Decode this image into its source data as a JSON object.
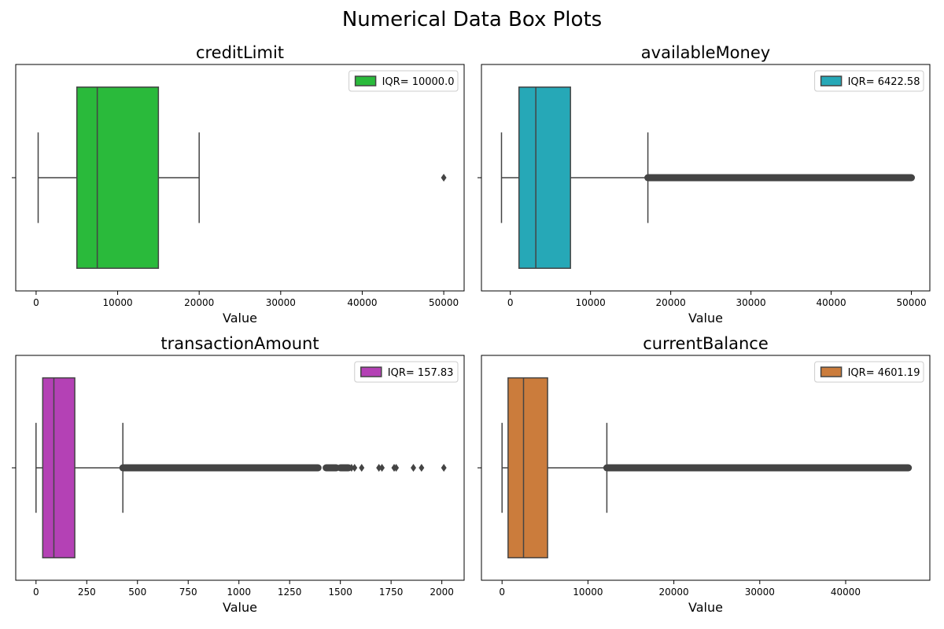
{
  "figure": {
    "title": "Numerical Data Box Plots"
  },
  "chart_data": [
    {
      "type": "box",
      "title": "creditLimit",
      "xlabel": "Value",
      "ylabel": "",
      "xlim": [
        -2500,
        52500
      ],
      "xticks": [
        0,
        10000,
        20000,
        30000,
        40000,
        50000
      ],
      "xtick_labels": [
        "0",
        "10000",
        "20000",
        "30000",
        "40000",
        "50000"
      ],
      "color": "#2aba3b",
      "legend": {
        "label": "IQR= 10000.0",
        "position": "top-right"
      },
      "box": {
        "whisker_low": 250,
        "q1": 5000,
        "median": 7500,
        "q3": 15000,
        "whisker_high": 20000
      },
      "outliers": {
        "segments": [],
        "points": [
          50000
        ]
      }
    },
    {
      "type": "box",
      "title": "availableMoney",
      "xlabel": "Value",
      "ylabel": "",
      "xlim": [
        -3600,
        52300
      ],
      "xticks": [
        0,
        10000,
        20000,
        30000,
        40000,
        50000
      ],
      "xtick_labels": [
        "0",
        "10000",
        "20000",
        "30000",
        "40000",
        "50000"
      ],
      "color": "#26a8b7",
      "legend": {
        "label": "IQR= 6422.58",
        "position": "top-right"
      },
      "box": {
        "whisker_low": -1100,
        "q1": 1080,
        "median": 3180,
        "q3": 7500,
        "whisker_high": 17150
      },
      "outliers": {
        "segments": [
          [
            17150,
            50000
          ]
        ],
        "points": []
      }
    },
    {
      "type": "box",
      "title": "transactionAmount",
      "xlabel": "Value",
      "ylabel": "",
      "xlim": [
        -100,
        2110
      ],
      "xticks": [
        0,
        250,
        500,
        750,
        1000,
        1250,
        1500,
        1750,
        2000
      ],
      "xtick_labels": [
        "0",
        "250",
        "500",
        "750",
        "1000",
        "1250",
        "1500",
        "1750",
        "2000"
      ],
      "color": "#b441b5",
      "legend": {
        "label": "IQR= 157.83",
        "position": "top-right"
      },
      "box": {
        "whisker_low": 0,
        "q1": 33,
        "median": 88,
        "q3": 191,
        "whisker_high": 428
      },
      "outliers": {
        "segments": [
          [
            428,
            1390
          ],
          [
            1430,
            1480
          ],
          [
            1500,
            1540
          ]
        ],
        "points": [
          1555,
          1570,
          1605,
          1690,
          1705,
          1765,
          1775,
          1860,
          1900,
          2010
        ]
      }
    },
    {
      "type": "box",
      "title": "currentBalance",
      "xlabel": "Value",
      "ylabel": "",
      "xlim": [
        -2400,
        49800
      ],
      "xticks": [
        0,
        10000,
        20000,
        30000,
        40000
      ],
      "xtick_labels": [
        "0",
        "10000",
        "20000",
        "30000",
        "40000"
      ],
      "color": "#cb7c3c",
      "legend": {
        "label": "IQR= 4601.19",
        "position": "top-right"
      },
      "box": {
        "whisker_low": 0,
        "q1": 700,
        "median": 2500,
        "q3": 5300,
        "whisker_high": 12200
      },
      "outliers": {
        "segments": [
          [
            12200,
            47300
          ]
        ],
        "points": []
      }
    }
  ]
}
